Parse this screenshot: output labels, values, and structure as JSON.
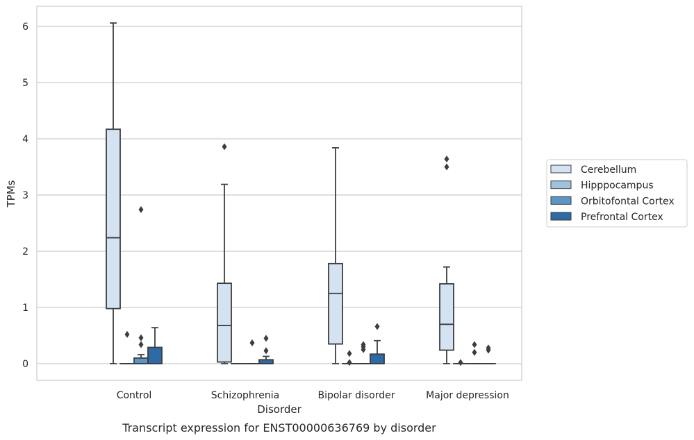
{
  "chart_data": {
    "type": "box",
    "xlabel": "Disorder",
    "ylabel": "TPMs",
    "caption": "Transcript expression for ENST00000636769 by disorder",
    "ylim": [
      -0.3,
      6.35
    ],
    "yticks": [
      0,
      1,
      2,
      3,
      4,
      5,
      6
    ],
    "grid": "horizontal",
    "legend_position": "right",
    "categories": [
      "Control",
      "Schizophrenia",
      "Bipolar disorder",
      "Major depression"
    ],
    "series": [
      {
        "name": "Cerebellum",
        "color": "#d4e3f2",
        "boxes": [
          {
            "whisker_low": 0.0,
            "q1": 0.98,
            "median": 2.24,
            "q3": 4.17,
            "whisker_high": 6.06,
            "outliers": []
          },
          {
            "whisker_low": 0.0,
            "q1": 0.03,
            "median": 0.68,
            "q3": 1.43,
            "whisker_high": 3.19,
            "outliers": [
              3.86
            ]
          },
          {
            "whisker_low": 0.0,
            "q1": 0.35,
            "median": 1.25,
            "q3": 1.78,
            "whisker_high": 3.84,
            "outliers": []
          },
          {
            "whisker_low": 0.0,
            "q1": 0.24,
            "median": 0.7,
            "q3": 1.42,
            "whisker_high": 1.72,
            "outliers": [
              3.5,
              3.64
            ]
          }
        ]
      },
      {
        "name": "Hipppocampus",
        "color": "#9fc2dd",
        "boxes": [
          {
            "whisker_low": 0.0,
            "q1": 0.0,
            "median": 0.0,
            "q3": 0.0,
            "whisker_high": 0.0,
            "outliers": [
              0.52
            ]
          },
          {
            "whisker_low": 0.0,
            "q1": 0.0,
            "median": 0.0,
            "q3": 0.0,
            "whisker_high": 0.0,
            "outliers": []
          },
          {
            "whisker_low": 0.0,
            "q1": 0.0,
            "median": 0.0,
            "q3": 0.0,
            "whisker_high": 0.0,
            "outliers": [
              0.02,
              0.18
            ]
          },
          {
            "whisker_low": 0.0,
            "q1": 0.0,
            "median": 0.0,
            "q3": 0.0,
            "whisker_high": 0.0,
            "outliers": [
              0.02
            ]
          }
        ]
      },
      {
        "name": "Orbitofontal Cortex",
        "color": "#5b96c4",
        "boxes": [
          {
            "whisker_low": 0.0,
            "q1": 0.0,
            "median": 0.0,
            "q3": 0.1,
            "whisker_high": 0.16,
            "outliers": [
              0.34,
              0.46,
              2.74
            ]
          },
          {
            "whisker_low": 0.0,
            "q1": 0.0,
            "median": 0.0,
            "q3": 0.0,
            "whisker_high": 0.0,
            "outliers": [
              0.37
            ]
          },
          {
            "whisker_low": 0.0,
            "q1": 0.0,
            "median": 0.0,
            "q3": 0.0,
            "whisker_high": 0.0,
            "outliers": [
              0.25,
              0.3,
              0.34
            ]
          },
          {
            "whisker_low": 0.0,
            "q1": 0.0,
            "median": 0.0,
            "q3": 0.0,
            "whisker_high": 0.0,
            "outliers": [
              0.2,
              0.34
            ]
          }
        ]
      },
      {
        "name": "Prefrontal Cortex",
        "color": "#2d6aa6",
        "boxes": [
          {
            "whisker_low": 0.0,
            "q1": 0.0,
            "median": 0.0,
            "q3": 0.29,
            "whisker_high": 0.64,
            "outliers": []
          },
          {
            "whisker_low": 0.0,
            "q1": 0.0,
            "median": 0.0,
            "q3": 0.07,
            "whisker_high": 0.13,
            "outliers": [
              0.23,
              0.45
            ]
          },
          {
            "whisker_low": 0.0,
            "q1": 0.0,
            "median": 0.0,
            "q3": 0.17,
            "whisker_high": 0.41,
            "outliers": [
              0.66
            ]
          },
          {
            "whisker_low": 0.0,
            "q1": 0.0,
            "median": 0.0,
            "q3": 0.0,
            "whisker_high": 0.0,
            "outliers": [
              0.24,
              0.28
            ]
          }
        ]
      }
    ]
  }
}
